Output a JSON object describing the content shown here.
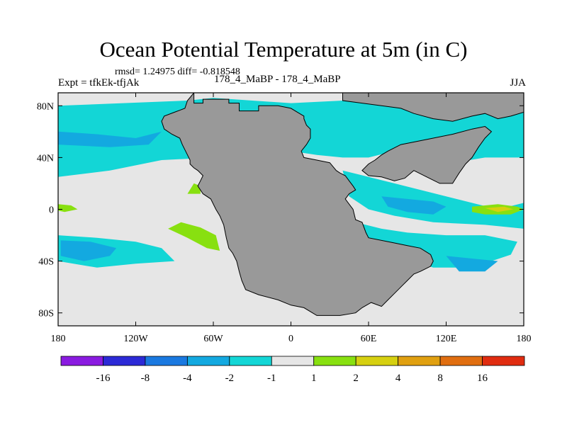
{
  "title": "Ocean Potential Temperature at 5m (in C)",
  "stats": "rmsd= 1.24975 diff= -0.818548",
  "experiment": "Expt = tfkEk-tfjAk",
  "runs": "178_4_MaBP - 178_4_MaBP",
  "season": "JJA",
  "colors": {
    "land": "#999999",
    "background_bin": "#e6e6e6",
    "bins": [
      "#8a1be0",
      "#2c2ad6",
      "#1a79e0",
      "#13a9e0",
      "#13d6d6",
      "#e6e6e6",
      "#88e010",
      "#d6d010",
      "#e0a010",
      "#e06e10",
      "#e02c10"
    ]
  },
  "chart_data": {
    "type": "heatmap",
    "title": "Ocean Potential Temperature at 5m (in C)",
    "xlim": [
      -180,
      180
    ],
    "ylim": [
      -90,
      90
    ],
    "x_ticks": [
      {
        "value": -180,
        "label": "180"
      },
      {
        "value": -120,
        "label": "120W"
      },
      {
        "value": -60,
        "label": "60W"
      },
      {
        "value": 0,
        "label": "0"
      },
      {
        "value": 60,
        "label": "60E"
      },
      {
        "value": 120,
        "label": "120E"
      },
      {
        "value": 180,
        "label": "180"
      }
    ],
    "y_ticks": [
      {
        "value": 80,
        "label": "80N"
      },
      {
        "value": 40,
        "label": "40N"
      },
      {
        "value": 0,
        "label": "0"
      },
      {
        "value": -40,
        "label": "40S"
      },
      {
        "value": -80,
        "label": "80S"
      }
    ],
    "colorbar_levels": [
      "-16",
      "-8",
      "-4",
      "-2",
      "-1",
      "1",
      "2",
      "4",
      "8",
      "16"
    ],
    "land_outline": [
      [
        -75,
        90
      ],
      [
        -75,
        82
      ],
      [
        -68,
        82
      ],
      [
        -68,
        85
      ],
      [
        -48,
        85
      ],
      [
        -48,
        82
      ],
      [
        -40,
        82
      ],
      [
        -40,
        76
      ],
      [
        -25,
        76
      ],
      [
        -25,
        80
      ],
      [
        -10,
        80
      ],
      [
        0,
        78
      ],
      [
        5,
        75
      ],
      [
        10,
        72
      ],
      [
        10,
        70
      ],
      [
        12,
        65
      ],
      [
        15,
        62
      ],
      [
        15,
        55
      ],
      [
        12,
        50
      ],
      [
        8,
        45
      ],
      [
        10,
        40
      ],
      [
        20,
        38
      ],
      [
        30,
        36
      ],
      [
        35,
        30
      ],
      [
        38,
        28
      ],
      [
        42,
        26
      ],
      [
        45,
        22
      ],
      [
        48,
        18
      ],
      [
        50,
        15
      ],
      [
        45,
        12
      ],
      [
        42,
        8
      ],
      [
        45,
        4
      ],
      [
        48,
        0
      ],
      [
        50,
        -8
      ],
      [
        55,
        -10
      ],
      [
        58,
        -18
      ],
      [
        60,
        -22
      ],
      [
        80,
        -26
      ],
      [
        90,
        -28
      ],
      [
        100,
        -30
      ],
      [
        108,
        -35
      ],
      [
        110,
        -40
      ],
      [
        108,
        -44
      ],
      [
        100,
        -48
      ],
      [
        95,
        -50
      ],
      [
        90,
        -55
      ],
      [
        85,
        -60
      ],
      [
        80,
        -65
      ],
      [
        75,
        -70
      ],
      [
        70,
        -75
      ],
      [
        62,
        -72
      ],
      [
        55,
        -76
      ],
      [
        50,
        -80
      ],
      [
        38,
        -82
      ],
      [
        20,
        -82
      ],
      [
        10,
        -76
      ],
      [
        0,
        -74
      ],
      [
        -10,
        -70
      ],
      [
        -25,
        -66
      ],
      [
        -35,
        -62
      ],
      [
        -38,
        -55
      ],
      [
        -40,
        -48
      ],
      [
        -42,
        -40
      ],
      [
        -45,
        -34
      ],
      [
        -48,
        -30
      ],
      [
        -50,
        -22
      ],
      [
        -52,
        -12
      ],
      [
        -55,
        -5
      ],
      [
        -58,
        0
      ],
      [
        -62,
        8
      ],
      [
        -68,
        12
      ],
      [
        -72,
        18
      ],
      [
        -70,
        22
      ],
      [
        -68,
        26
      ],
      [
        -72,
        30
      ],
      [
        -75,
        32
      ],
      [
        -78,
        35
      ],
      [
        -78,
        38
      ],
      [
        -80,
        42
      ],
      [
        -84,
        50
      ],
      [
        -86,
        55
      ],
      [
        -92,
        58
      ],
      [
        -98,
        62
      ],
      [
        -100,
        68
      ],
      [
        -98,
        72
      ],
      [
        -90,
        75
      ],
      [
        -82,
        78
      ],
      [
        -80,
        84
      ],
      [
        -75,
        90
      ]
    ],
    "land_outline_2": [
      [
        40,
        90
      ],
      [
        40,
        84
      ],
      [
        55,
        82
      ],
      [
        70,
        80
      ],
      [
        85,
        78
      ],
      [
        95,
        74
      ],
      [
        110,
        70
      ],
      [
        125,
        68
      ],
      [
        140,
        72
      ],
      [
        150,
        74
      ],
      [
        160,
        70
      ],
      [
        170,
        72
      ],
      [
        180,
        75
      ],
      [
        180,
        90
      ]
    ],
    "land_outline_3": [
      [
        95,
        30
      ],
      [
        105,
        25
      ],
      [
        115,
        20
      ],
      [
        125,
        20
      ],
      [
        130,
        28
      ],
      [
        135,
        35
      ],
      [
        140,
        40
      ],
      [
        145,
        48
      ],
      [
        150,
        55
      ],
      [
        155,
        60
      ],
      [
        150,
        64
      ],
      [
        140,
        62
      ],
      [
        125,
        58
      ],
      [
        110,
        55
      ],
      [
        95,
        52
      ],
      [
        85,
        50
      ],
      [
        75,
        45
      ],
      [
        70,
        42
      ],
      [
        65,
        38
      ],
      [
        60,
        35
      ],
      [
        55,
        30
      ],
      [
        60,
        26
      ],
      [
        70,
        25
      ],
      [
        80,
        22
      ],
      [
        88,
        24
      ],
      [
        95,
        30
      ]
    ],
    "regions": [
      {
        "value": "-1 to -2",
        "color": "#13d6d6",
        "polygon": [
          [
            -180,
            80
          ],
          [
            -80,
            84
          ],
          [
            -60,
            86
          ],
          [
            0,
            82
          ],
          [
            40,
            84
          ],
          [
            100,
            80
          ],
          [
            180,
            78
          ],
          [
            180,
            40
          ],
          [
            150,
            40
          ],
          [
            120,
            35
          ],
          [
            100,
            40
          ],
          [
            80,
            45
          ],
          [
            60,
            40
          ],
          [
            40,
            40
          ],
          [
            20,
            42
          ],
          [
            0,
            45
          ],
          [
            -60,
            40
          ],
          [
            -100,
            38
          ],
          [
            -140,
            30
          ],
          [
            -180,
            25
          ]
        ]
      },
      {
        "value": "-2 to -4",
        "color": "#13a9e0",
        "polygon": [
          [
            -180,
            60
          ],
          [
            -150,
            58
          ],
          [
            -120,
            55
          ],
          [
            -100,
            60
          ],
          [
            -110,
            50
          ],
          [
            -140,
            48
          ],
          [
            -180,
            50
          ]
        ]
      },
      {
        "value": "-1 to -2",
        "color": "#13d6d6",
        "polygon": [
          [
            -180,
            -20
          ],
          [
            -150,
            -22
          ],
          [
            -120,
            -25
          ],
          [
            -100,
            -30
          ],
          [
            -90,
            -40
          ],
          [
            -120,
            -42
          ],
          [
            -150,
            -45
          ],
          [
            -180,
            -40
          ]
        ]
      },
      {
        "value": "-2 to -4",
        "color": "#13a9e0",
        "polygon": [
          [
            -178,
            -24
          ],
          [
            -155,
            -25
          ],
          [
            -135,
            -30
          ],
          [
            -140,
            -36
          ],
          [
            -160,
            -40
          ],
          [
            -178,
            -36
          ]
        ]
      },
      {
        "value": "-1 to -2",
        "color": "#13d6d6",
        "polygon": [
          [
            50,
            -10
          ],
          [
            70,
            -15
          ],
          [
            90,
            -18
          ],
          [
            120,
            -20
          ],
          [
            150,
            -20
          ],
          [
            175,
            -25
          ],
          [
            170,
            -35
          ],
          [
            140,
            -45
          ],
          [
            110,
            -45
          ],
          [
            95,
            -40
          ],
          [
            70,
            -30
          ],
          [
            55,
            -25
          ]
        ]
      },
      {
        "value": "-1 to -2",
        "color": "#13d6d6",
        "polygon": [
          [
            40,
            30
          ],
          [
            80,
            20
          ],
          [
            120,
            10
          ],
          [
            160,
            0
          ],
          [
            180,
            5
          ],
          [
            180,
            -15
          ],
          [
            150,
            -12
          ],
          [
            110,
            -10
          ],
          [
            80,
            -5
          ],
          [
            60,
            0
          ],
          [
            45,
            10
          ]
        ]
      },
      {
        "value": "-2 to -4",
        "color": "#13a9e0",
        "polygon": [
          [
            70,
            10
          ],
          [
            90,
            8
          ],
          [
            110,
            6
          ],
          [
            120,
            2
          ],
          [
            110,
            -4
          ],
          [
            90,
            -2
          ],
          [
            75,
            2
          ]
        ]
      },
      {
        "value": "-2 to -4",
        "color": "#13a9e0",
        "polygon": [
          [
            120,
            -36
          ],
          [
            140,
            -38
          ],
          [
            160,
            -40
          ],
          [
            150,
            -48
          ],
          [
            130,
            -48
          ]
        ]
      },
      {
        "value": "1 to 2",
        "color": "#88e010",
        "polygon": [
          [
            -180,
            4
          ],
          [
            -170,
            3
          ],
          [
            -165,
            0
          ],
          [
            -175,
            -2
          ],
          [
            -180,
            -1
          ]
        ]
      },
      {
        "value": "1 to 2",
        "color": "#88e010",
        "polygon": [
          [
            -85,
            -10
          ],
          [
            -70,
            -14
          ],
          [
            -58,
            -20
          ],
          [
            -55,
            -32
          ],
          [
            -65,
            -30
          ],
          [
            -80,
            -22
          ],
          [
            -95,
            -15
          ]
        ]
      },
      {
        "value": "1 to 2",
        "color": "#88e010",
        "polygon": [
          [
            -75,
            20
          ],
          [
            -70,
            18
          ],
          [
            -70,
            12
          ],
          [
            -80,
            12
          ]
        ]
      },
      {
        "value": "1 to 2",
        "color": "#88e010",
        "polygon": [
          [
            140,
            2
          ],
          [
            160,
            4
          ],
          [
            175,
            2
          ],
          [
            180,
            0
          ],
          [
            170,
            -4
          ],
          [
            150,
            -4
          ],
          [
            140,
            -2
          ]
        ]
      },
      {
        "value": "2 to 4",
        "color": "#d6d010",
        "polygon": [
          [
            150,
            1
          ],
          [
            165,
            2
          ],
          [
            172,
            0
          ],
          [
            160,
            -2
          ]
        ]
      }
    ]
  }
}
